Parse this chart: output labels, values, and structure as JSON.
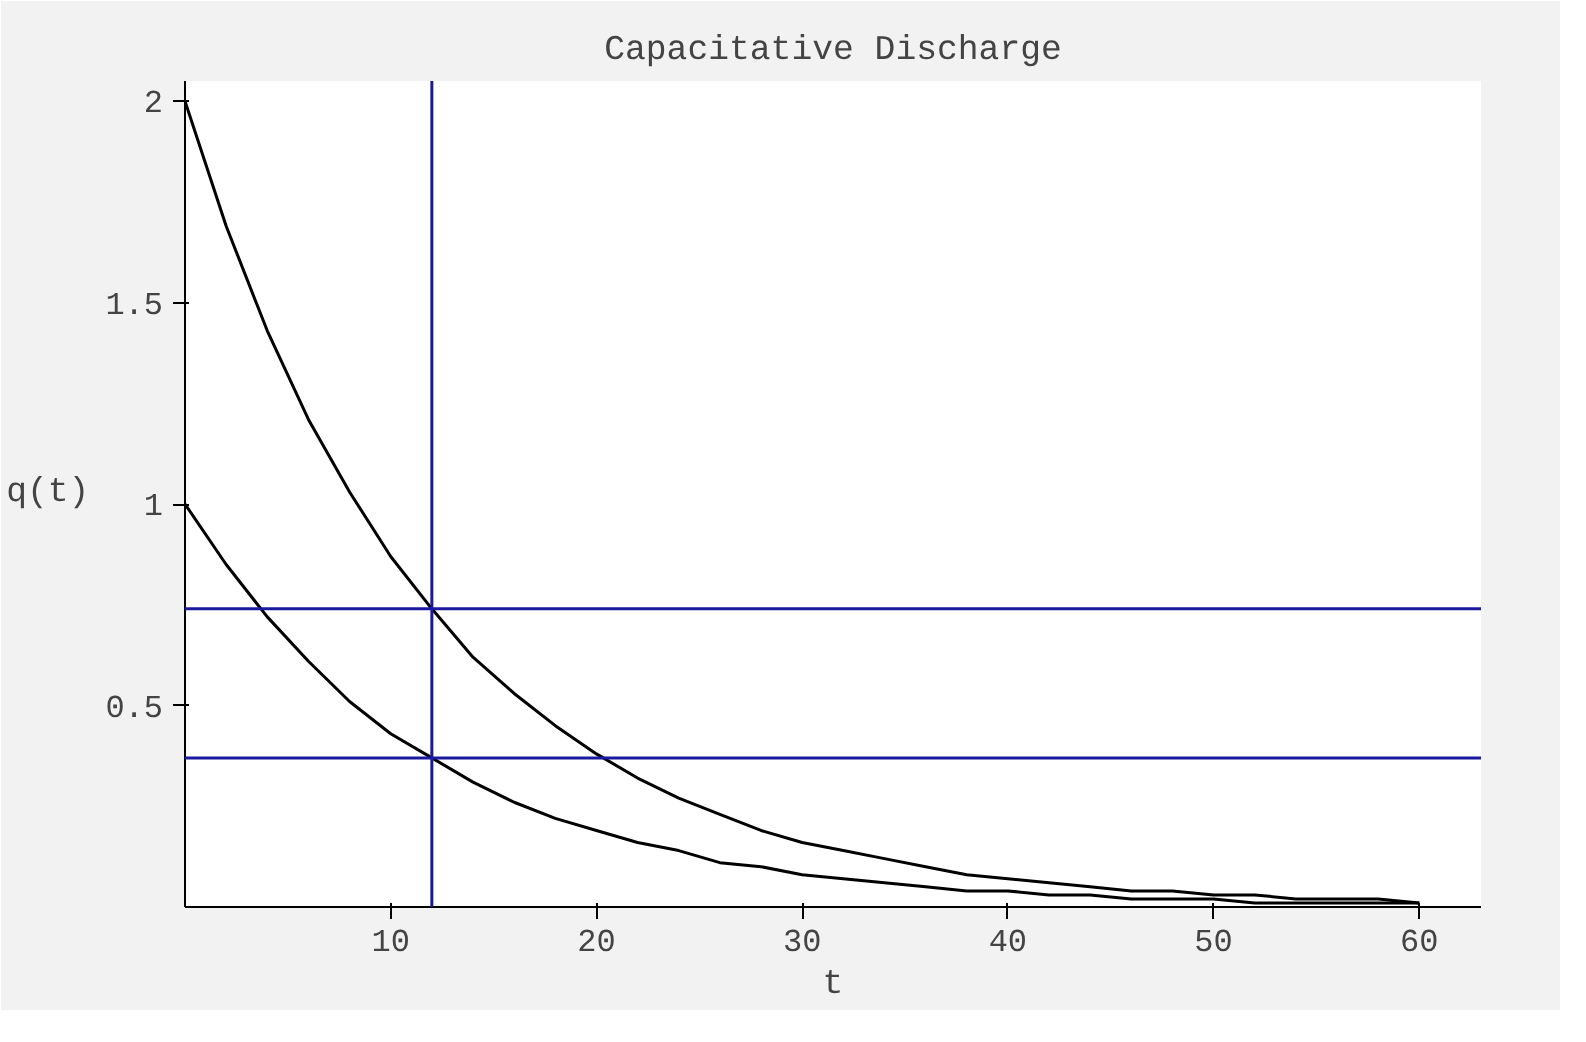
{
  "chart_data": {
    "type": "line",
    "title": "Capacitative Discharge",
    "xlabel": "t",
    "ylabel": "q(t)",
    "x": [
      0,
      2,
      4,
      6,
      8,
      10,
      12,
      14,
      16,
      18,
      20,
      22,
      24,
      26,
      28,
      30,
      32,
      34,
      36,
      38,
      40,
      42,
      44,
      46,
      48,
      50,
      52,
      54,
      56,
      58,
      60
    ],
    "series": [
      {
        "color": "#000000",
        "values": [
          2,
          1.69,
          1.43,
          1.21,
          1.03,
          0.87,
          0.74,
          0.62,
          0.53,
          0.45,
          0.38,
          0.32,
          0.27,
          0.23,
          0.19,
          0.16,
          0.14,
          0.12,
          0.1,
          0.08,
          0.07,
          0.06,
          0.05,
          0.04,
          0.04,
          0.03,
          0.03,
          0.02,
          0.02,
          0.02,
          0.01
        ]
      },
      {
        "color": "#000000",
        "values": [
          1,
          0.85,
          0.72,
          0.61,
          0.51,
          0.43,
          0.37,
          0.31,
          0.26,
          0.22,
          0.19,
          0.16,
          0.14,
          0.11,
          0.1,
          0.08,
          0.07,
          0.06,
          0.05,
          0.04,
          0.04,
          0.03,
          0.03,
          0.02,
          0.02,
          0.02,
          0.01,
          0.01,
          0.01,
          0.01,
          0.01
        ]
      }
    ],
    "ref_lines": [
      {
        "axis": "y",
        "value": 0.74,
        "color": "#1a1a9e"
      },
      {
        "axis": "y",
        "value": 0.37,
        "color": "#1a1a9e"
      },
      {
        "axis": "x",
        "value": 12,
        "color": "#1a1a9e"
      }
    ],
    "xlim": [
      0,
      63
    ],
    "ylim": [
      0,
      2.05
    ],
    "xticks": [
      10,
      20,
      30,
      40,
      50,
      60
    ],
    "yticks": [
      0.5,
      1,
      1.5,
      2
    ],
    "grid": false,
    "line_style": "solid",
    "marker": "none"
  }
}
